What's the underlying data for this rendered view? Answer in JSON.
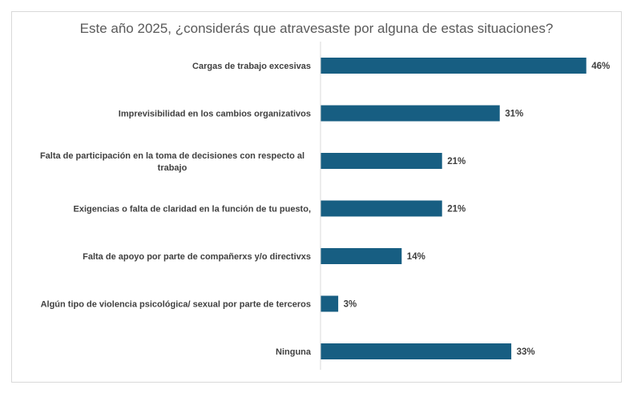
{
  "chart_data": {
    "type": "bar",
    "orientation": "horizontal",
    "title": "Este año 2025, ¿considerás que atravesaste por alguna de estas situaciones?",
    "categories": [
      [
        "Cargas de trabajo excesivas"
      ],
      [
        "Imprevisibilidad en los cambios organizativos"
      ],
      [
        "Falta de participación en la toma de decisiones con respecto al",
        "trabajo"
      ],
      [
        "Exigencias o falta de claridad en la función de tu puesto,"
      ],
      [
        "Falta de apoyo por parte de compañerxs y/o directivxs"
      ],
      [
        "Algún tipo de violencia psicológica/ sexual por parte de terceros"
      ],
      [
        "Ninguna"
      ]
    ],
    "values": [
      46,
      31,
      21,
      21,
      14,
      3,
      33
    ],
    "data_labels": [
      "46%",
      "31%",
      "21%",
      "21%",
      "14%",
      "3%",
      "33%"
    ],
    "unit": "%",
    "grid": false,
    "legend": "none",
    "colors": {
      "bar": "#175e82",
      "axis": "#d9d9d9",
      "text": "#404040",
      "title": "#595959"
    }
  }
}
